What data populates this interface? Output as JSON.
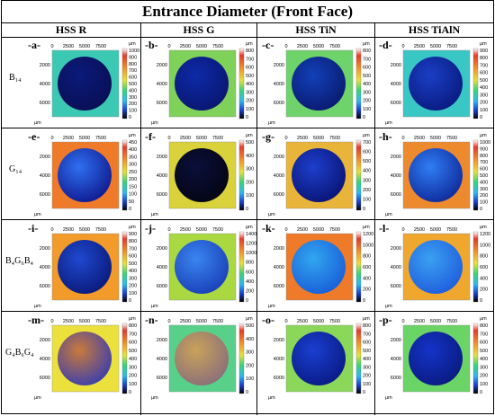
{
  "title": "Entrance Diameter (Front Face)",
  "columns": [
    "HSS R",
    "HSS G",
    "HSS TiN",
    "HSS TiAlN"
  ],
  "rows": [
    "B₁₄",
    "G₁₄",
    "B₄G₆B₄",
    "G₄B₆G₄"
  ],
  "axis": {
    "x_ticks": [
      "0",
      "2500",
      "5000",
      "7500"
    ],
    "y_ticks": [
      "2000",
      "4000",
      "6000"
    ],
    "unit": "µm"
  },
  "panels": [
    {
      "label": "-a-",
      "bg": "#3cc9b4",
      "disk": "#0b1a7a",
      "disk2": "#0a0f55",
      "scale": [
        "1000",
        "900",
        "800",
        "700",
        "600",
        "500",
        "400",
        "300",
        "200",
        "100",
        "0"
      ]
    },
    {
      "label": "-b-",
      "bg": "#7fd15a",
      "disk": "#0d2aa8",
      "disk2": "#0a1670",
      "scale": [
        "800",
        "700",
        "600",
        "500",
        "400",
        "300",
        "200",
        "100",
        "0"
      ]
    },
    {
      "label": "-c-",
      "bg": "#6fd36b",
      "disk": "#1240b8",
      "disk2": "#0a1a70",
      "scale": [
        "800",
        "700",
        "600",
        "500",
        "400",
        "300",
        "200",
        "100",
        "0"
      ]
    },
    {
      "label": "-d-",
      "bg": "#39c7c6",
      "disk": "#1a3fc4",
      "disk2": "#0a1a80",
      "scale": [
        "900",
        "800",
        "700",
        "600",
        "500",
        "400",
        "300",
        "200",
        "100",
        "0"
      ]
    },
    {
      "label": "-e-",
      "bg": "#ef7b2a",
      "disk": "#2f6ff0",
      "disk2": "#101a90",
      "scale": [
        "450",
        "400",
        "350",
        "300",
        "250",
        "200",
        "150",
        "100",
        "50",
        "0"
      ]
    },
    {
      "label": "-f-",
      "bg": "#d9d23a",
      "disk": "#0a0f3a",
      "disk2": "#050514",
      "scale": [
        "500",
        "400",
        "300",
        "200",
        "100",
        "0"
      ]
    },
    {
      "label": "-g-",
      "bg": "#e9b43a",
      "disk": "#1d3fcc",
      "disk2": "#0a1475",
      "scale": [
        "700",
        "600",
        "500",
        "400",
        "300",
        "200",
        "100",
        "0"
      ]
    },
    {
      "label": "-h-",
      "bg": "#ee8a2e",
      "disk": "#2f7df5",
      "disk2": "#0f2a9a",
      "scale": [
        "1000",
        "900",
        "800",
        "700",
        "600",
        "500",
        "400",
        "300",
        "200",
        "100",
        "0"
      ]
    },
    {
      "label": "-i-",
      "bg": "#f29a2a",
      "disk": "#1f48d0",
      "disk2": "#0a1a7a",
      "scale": [
        "900",
        "800",
        "700",
        "600",
        "500",
        "400",
        "300",
        "200",
        "100",
        "0"
      ]
    },
    {
      "label": "-j-",
      "bg": "#a9d841",
      "disk": "#3a86ef",
      "disk2": "#1a3fb8",
      "scale": [
        "1400",
        "1200",
        "1000",
        "800",
        "600",
        "400",
        "200",
        "0"
      ]
    },
    {
      "label": "-k-",
      "bg": "#ee7a2a",
      "disk": "#31a6f0",
      "disk2": "#1a5ed8",
      "scale": [
        "1200",
        "1000",
        "800",
        "600",
        "400",
        "200",
        "0"
      ]
    },
    {
      "label": "-l-",
      "bg": "#f0a72e",
      "disk": "#3aa0f2",
      "disk2": "#1f5edd",
      "scale": [
        "1200",
        "1000",
        "800",
        "600",
        "400",
        "200",
        "0"
      ]
    },
    {
      "label": "-m-",
      "bg": "#ece13c",
      "disk": "#c97a3a",
      "disk2": "#3b3fae",
      "scale": [
        "800",
        "700",
        "600",
        "500",
        "400",
        "300",
        "200",
        "100",
        "0"
      ]
    },
    {
      "label": "-n-",
      "bg": "#58d08a",
      "disk": "#c9a25a",
      "disk2": "#8a6f7a",
      "scale": [
        "500",
        "400",
        "300",
        "200",
        "100",
        "0"
      ]
    },
    {
      "label": "-o-",
      "bg": "#8ad75a",
      "disk": "#1a3fd0",
      "disk2": "#0a1a85",
      "scale": [
        "800",
        "700",
        "600",
        "500",
        "400",
        "300",
        "200",
        "100",
        "0"
      ]
    },
    {
      "label": "-p-",
      "bg": "#6bd467",
      "disk": "#1434c8",
      "disk2": "#0a1a80",
      "scale": [
        "800",
        "700",
        "600",
        "500",
        "400",
        "300",
        "200",
        "100",
        "0"
      ]
    }
  ]
}
